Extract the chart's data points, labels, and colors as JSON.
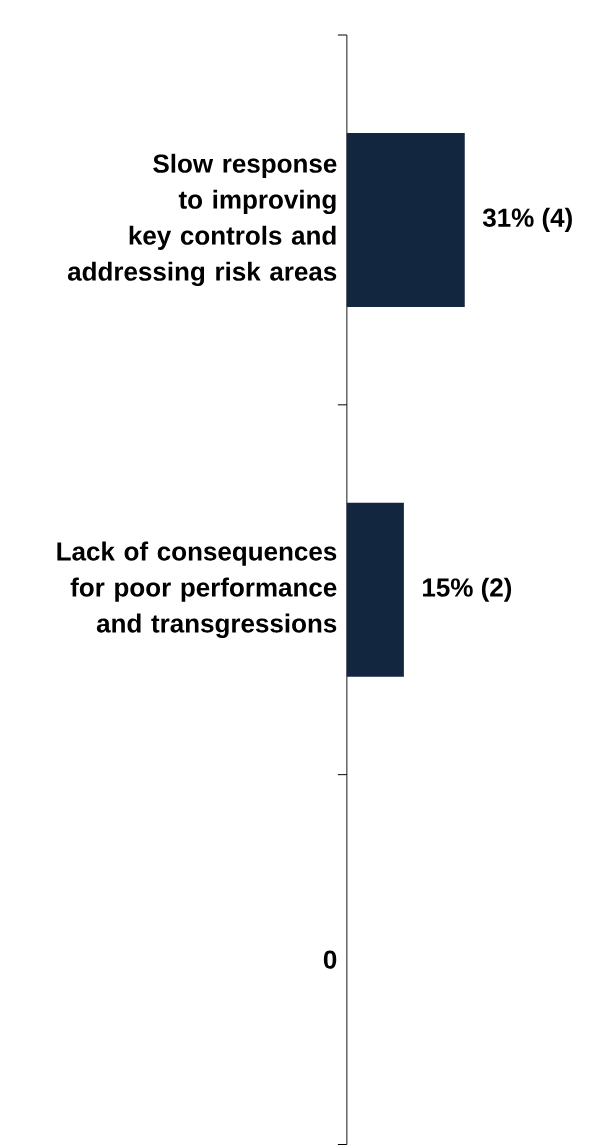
{
  "chart_data": {
    "type": "bar",
    "orientation": "horizontal",
    "categories": [
      "Slow response to improving key controls and addressing risk areas",
      "Lack of consequences for poor performance and transgressions",
      "0"
    ],
    "values": [
      31,
      15,
      0
    ],
    "value_labels": [
      "31% (4)",
      "15% (2)",
      null
    ],
    "color": "#13263f"
  }
}
